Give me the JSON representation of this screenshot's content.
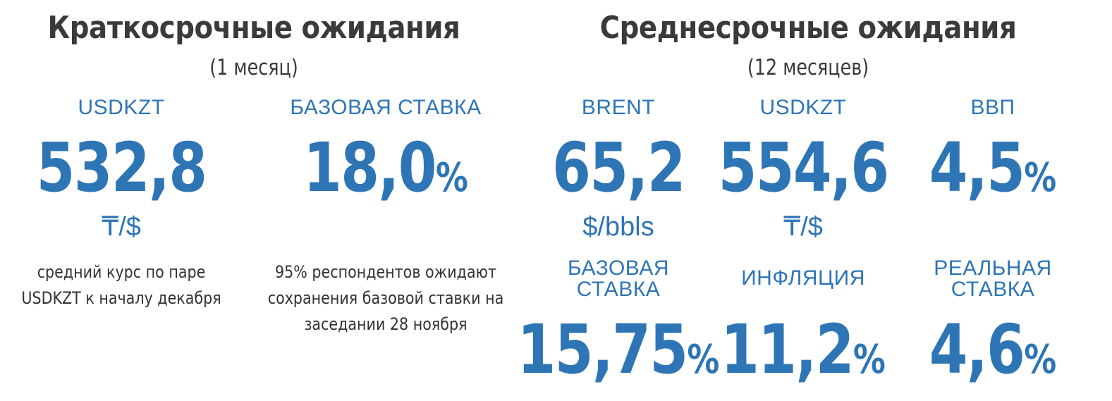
{
  "short_term": {
    "title": "Краткосрочные ожидания",
    "subtitle": "(1 месяц)",
    "usdkzt": {
      "label": "USDKZT",
      "value": "532,8",
      "unit": "₸/$",
      "note_lines": [
        "средний курс по паре",
        "USDKZT к началу декабря"
      ]
    },
    "base_rate": {
      "label": "БАЗОВАЯ СТАВКА",
      "value": "18,0",
      "percent": "%",
      "note_lines": [
        "95% респондентов ожидают",
        "сохранения базовой ставки на",
        "заседании 28 ноября"
      ]
    }
  },
  "medium_term": {
    "title": "Среднесрочные ожидания",
    "subtitle": "(12 месяцев)",
    "brent": {
      "label": "BRENT",
      "value": "65,2",
      "unit": "$/bbls"
    },
    "usdkzt": {
      "label": "USDKZT",
      "value": "554,6",
      "unit": "₸/$"
    },
    "gdp": {
      "label": "ВВП",
      "value": "4,5",
      "percent": "%"
    },
    "base_rate": {
      "label_lines": [
        "БАЗОВАЯ",
        "СТАВКА"
      ],
      "value": "15,75",
      "percent": "%"
    },
    "inflation": {
      "label": "ИНФЛЯЦИЯ",
      "value": "11,2",
      "percent": "%"
    },
    "real_rate": {
      "label_lines": [
        "РЕАЛЬНАЯ",
        "СТАВКА"
      ],
      "value": "4,6",
      "percent": "%"
    }
  }
}
